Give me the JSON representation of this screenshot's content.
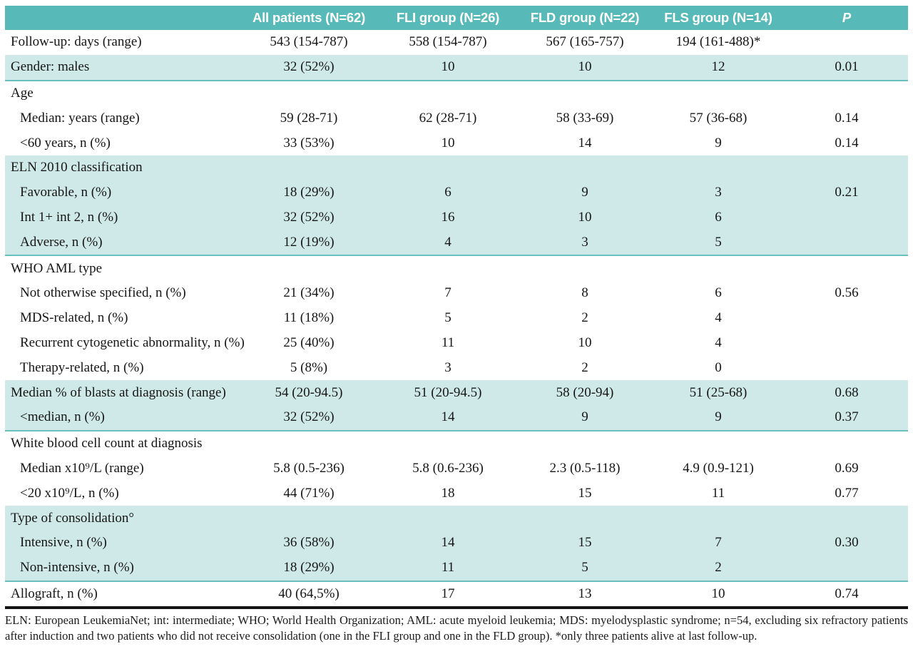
{
  "colors": {
    "header_teal": "#58bab8",
    "row_teal": "#cfe9e8",
    "group_separator_teal": "#68c0be",
    "bottom_rule_black": "#141414",
    "header_text": "#ffffff",
    "body_text": "#161616"
  },
  "table": {
    "columns": [
      "",
      "All patients (N=62)",
      "FLI group (N=26)",
      "FLD group (N=22)",
      "FLS group (N=14)",
      "P"
    ],
    "rows": [
      {
        "label": "Follow-up: days (range)",
        "indent": false,
        "shade": false,
        "group_end": false,
        "values": [
          "543 (154-787)",
          "558 (154-787)",
          "567 (165-757)",
          "194 (161-488)*",
          ""
        ]
      },
      {
        "label": "Gender: males",
        "indent": false,
        "shade": true,
        "group_end": true,
        "values": [
          "32 (52%)",
          "10",
          "10",
          "12",
          "0.01"
        ]
      },
      {
        "label": "Age",
        "indent": false,
        "shade": false,
        "group_end": false,
        "values": [
          "",
          "",
          "",
          "",
          ""
        ]
      },
      {
        "label": "Median: years (range)",
        "indent": true,
        "shade": false,
        "group_end": false,
        "values": [
          "59 (28-71)",
          "62 (28-71)",
          "58 (33-69)",
          "57 (36-68)",
          "0.14"
        ]
      },
      {
        "label": "<60 years, n (%)",
        "indent": true,
        "shade": false,
        "group_end": false,
        "values": [
          "33 (53%)",
          "10",
          "14",
          "9",
          "0.14"
        ]
      },
      {
        "label": "ELN 2010 classification",
        "indent": false,
        "shade": true,
        "group_end": false,
        "values": [
          "",
          "",
          "",
          "",
          ""
        ]
      },
      {
        "label": "Favorable, n (%)",
        "indent": true,
        "shade": true,
        "group_end": false,
        "values": [
          "18 (29%)",
          "6",
          "9",
          "3",
          "0.21"
        ]
      },
      {
        "label": "Int 1+ int 2, n (%)",
        "indent": true,
        "shade": true,
        "group_end": false,
        "values": [
          "32 (52%)",
          "16",
          "10",
          "6",
          ""
        ]
      },
      {
        "label": "Adverse, n (%)",
        "indent": true,
        "shade": true,
        "group_end": true,
        "values": [
          "12 (19%)",
          "4",
          "3",
          "5",
          ""
        ]
      },
      {
        "label": "WHO AML type",
        "indent": false,
        "shade": false,
        "group_end": false,
        "values": [
          "",
          "",
          "",
          "",
          ""
        ]
      },
      {
        "label": "Not otherwise specified, n (%)",
        "indent": true,
        "shade": false,
        "group_end": false,
        "values": [
          "21 (34%)",
          "7",
          "8",
          "6",
          "0.56"
        ]
      },
      {
        "label": "MDS-related, n (%)",
        "indent": true,
        "shade": false,
        "group_end": false,
        "values": [
          "11 (18%)",
          "5",
          "2",
          "4",
          ""
        ]
      },
      {
        "label": "Recurrent cytogenetic abnormality, n (%)",
        "indent": true,
        "shade": false,
        "group_end": false,
        "values": [
          "25 (40%)",
          "11",
          "10",
          "4",
          ""
        ]
      },
      {
        "label": "Therapy-related, n (%)",
        "indent": true,
        "shade": false,
        "group_end": false,
        "values": [
          "5 (8%)",
          "3",
          "2",
          "0",
          ""
        ]
      },
      {
        "label": "Median % of blasts at diagnosis (range)",
        "indent": false,
        "shade": true,
        "group_end": false,
        "values": [
          "54 (20-94.5)",
          "51 (20-94.5)",
          "58 (20-94)",
          "51 (25-68)",
          "0.68"
        ]
      },
      {
        "label": "<median, n (%)",
        "indent": true,
        "shade": true,
        "group_end": true,
        "values": [
          "32 (52%)",
          "14",
          "9",
          "9",
          "0.37"
        ]
      },
      {
        "label": "White blood cell count at diagnosis",
        "indent": false,
        "shade": false,
        "group_end": false,
        "values": [
          "",
          "",
          "",
          "",
          ""
        ]
      },
      {
        "label": "Median x10⁹/L (range)",
        "indent": true,
        "shade": false,
        "group_end": false,
        "values": [
          "5.8 (0.5-236)",
          "5.8 (0.6-236)",
          "2.3 (0.5-118)",
          "4.9 (0.9-121)",
          "0.69"
        ]
      },
      {
        "label": "<20 x10⁹/L, n (%)",
        "indent": true,
        "shade": false,
        "group_end": false,
        "values": [
          "44 (71%)",
          "18",
          "15",
          "11",
          "0.77"
        ]
      },
      {
        "label": "Type of consolidation°",
        "indent": false,
        "shade": true,
        "group_end": false,
        "values": [
          "",
          "",
          "",
          "",
          ""
        ]
      },
      {
        "label": "Intensive, n (%)",
        "indent": true,
        "shade": true,
        "group_end": false,
        "values": [
          "36 (58%)",
          "14",
          "15",
          "7",
          "0.30"
        ]
      },
      {
        "label": "Non-intensive, n (%)",
        "indent": true,
        "shade": true,
        "group_end": true,
        "values": [
          "18 (29%)",
          "11",
          "5",
          "2",
          ""
        ]
      },
      {
        "label": "Allograft, n (%)",
        "indent": false,
        "shade": false,
        "group_end": false,
        "values": [
          "40 (64,5%)",
          "17",
          "13",
          "10",
          "0.74"
        ]
      }
    ]
  },
  "footnote": "ELN: European LeukemiaNet; int: intermediate; WHO; World Health Organization; AML: acute myeloid leukemia; MDS: myelodysplastic syndrome; n=54, excluding six refractory patients after induction and two patients who did not receive consolidation (one in the FLI group and one in the FLD group). *only three patients alive at last follow-up."
}
